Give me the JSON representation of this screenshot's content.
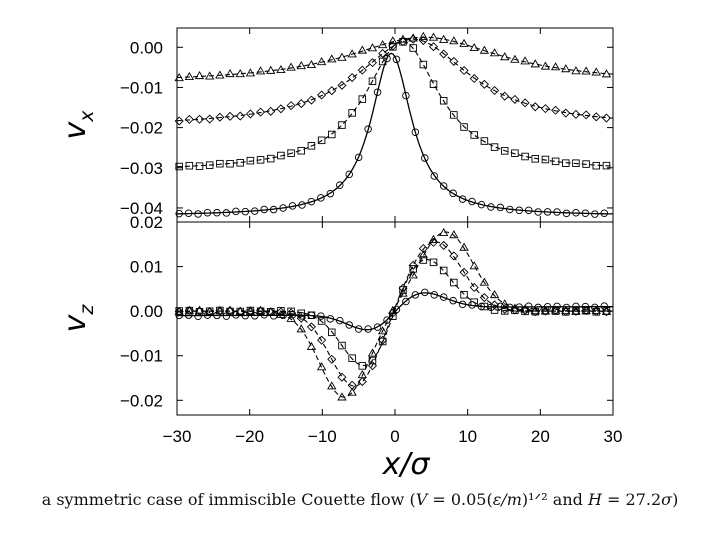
{
  "chart_data": [
    {
      "type": "line",
      "panel": "top",
      "ylabel": "v_x",
      "ylabel_text": "vx",
      "xlabel": "",
      "xlim": [
        -30,
        30
      ],
      "ylim": [
        -0.0435,
        0.0048
      ],
      "yticks": [
        0.0,
        -0.01,
        -0.02,
        -0.03,
        -0.04
      ],
      "ytick_labels": [
        "0.00",
        "−0.01",
        "−0.02",
        "−0.03",
        "−0.04"
      ],
      "series": [
        {
          "name": "circles",
          "marker": "circle",
          "line": "solid",
          "params": {
            "side": -0.042,
            "peak": -0.0015,
            "width": 3.4,
            "xc": -0.5
          }
        },
        {
          "name": "squares",
          "marker": "square",
          "line": "dashed",
          "params": {
            "side": -0.031,
            "peak": 0.0015,
            "width": 6.2,
            "xc": 1.0
          }
        },
        {
          "name": "diamonds",
          "marker": "diamond",
          "line": "dashed",
          "params": {
            "side": -0.02,
            "peak": 0.002,
            "width": 9.5,
            "xc": 2.5
          }
        },
        {
          "name": "triangles",
          "marker": "triangle",
          "line": "dashed",
          "params": {
            "side": -0.009,
            "peak": 0.0025,
            "width": 13.0,
            "xc": 4.0
          }
        }
      ]
    },
    {
      "type": "line",
      "panel": "bottom",
      "ylabel": "v_z",
      "ylabel_text": "vz",
      "xlabel": "x/σ",
      "xlim": [
        -30,
        30
      ],
      "ylim": [
        -0.0233,
        0.02
      ],
      "xticks": [
        -30,
        -20,
        -10,
        0,
        10,
        20,
        30
      ],
      "xtick_labels": [
        "−30",
        "−20",
        "−10",
        "0",
        "10",
        "20",
        "30"
      ],
      "yticks": [
        0.02,
        0.01,
        0.0,
        -0.01,
        -0.02
      ],
      "ytick_labels": [
        "0.02",
        "0.01",
        "0.00",
        "−0.01",
        "−0.02"
      ],
      "series": [
        {
          "name": "circles",
          "marker": "circle",
          "line": "solid",
          "params": {
            "amp": -0.0052,
            "xpk": -2.5,
            "width": 5.0,
            "tail": 0.001
          }
        },
        {
          "name": "squares",
          "marker": "square",
          "line": "dashed",
          "params": {
            "amp": -0.0135,
            "xpk": -3.8,
            "width": 5.0
          }
        },
        {
          "name": "diamonds",
          "marker": "diamond",
          "line": "dashed",
          "params": {
            "amp": -0.017,
            "xpk": -5.5,
            "width": 5.0
          }
        },
        {
          "name": "triangles",
          "marker": "triangle",
          "line": "dashed",
          "params": {
            "amp": -0.0193,
            "xpk": -7.0,
            "width": 5.0
          }
        }
      ]
    }
  ],
  "caption": {
    "text": "a symmetric case of immiscible Couette flow (",
    "v_expr": "V",
    "v_value": " = 0.05(",
    "v_unit": "ε/m",
    "v_exp": ")¹ᐟ²",
    "and": " and ",
    "h_expr": "H",
    "h_value": " = 27.2",
    "h_unit": "σ",
    "close": ")"
  }
}
